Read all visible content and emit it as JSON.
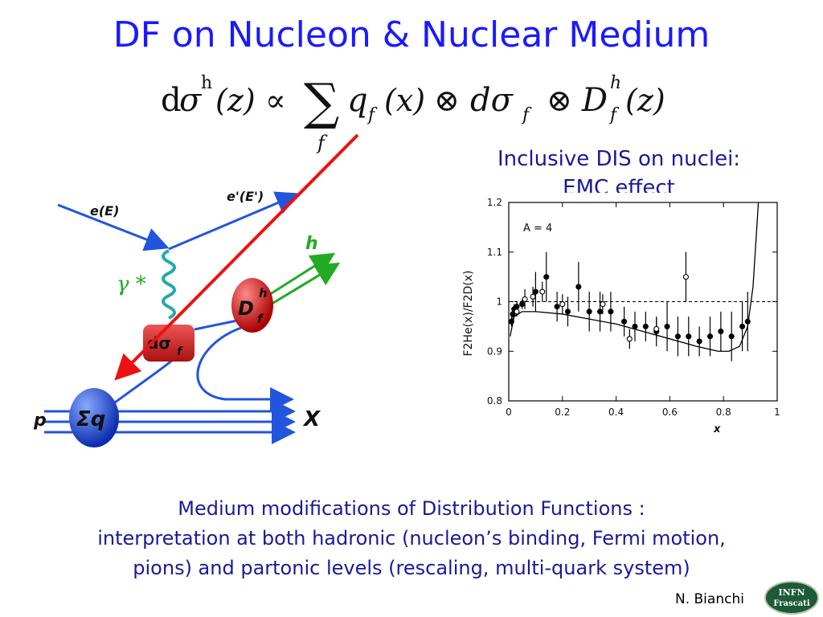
{
  "title": "DF on Nucleon & Nuclear Medium",
  "formula": {
    "d": "d",
    "sigma": "σ",
    "h_sup": "h",
    "z_arg": "(z)",
    "propto": "∝",
    "sum": "∑",
    "sum_sub": "f",
    "q": "q",
    "q_sub": "f",
    "x_arg": "(x)",
    "otimes1": "⊗",
    "dsigma": "dσ",
    "dsigma_sub": "f",
    "otimes2": "⊗",
    "D": "D",
    "D_sup": "h",
    "D_sub": "f",
    "z_arg2": "(z)"
  },
  "diagram": {
    "e_in": "e(E)",
    "e_out": "e'(E')",
    "gamma": "γ *",
    "h": "h",
    "D": "D",
    "D_sup": "h",
    "D_sub": "f",
    "dsigma": "dσ",
    "dsigma_sub": "f",
    "p": "p",
    "sigma_q": "Σq",
    "X": "X",
    "colors": {
      "blue_line": "#2255dd",
      "red_arrow": "#ee1111",
      "green": "#22aa22",
      "gamma_wave": "#22aaaa",
      "red_blob": "#cc1111",
      "blue_blob": "#1144dd"
    }
  },
  "dis_caption": {
    "line1": "Inclusive DIS on nuclei:",
    "line2": "EMC effect"
  },
  "chart_data": {
    "type": "scatter",
    "title": "",
    "annotation": "A = 4",
    "xlabel": "x",
    "ylabel": "F2He(x)/F2D(x)",
    "xlim": [
      0,
      1
    ],
    "ylim": [
      0.8,
      1.2
    ],
    "xticks": [
      "0",
      "0.2",
      "0.4",
      "0.6",
      "0.8",
      "1"
    ],
    "yticks": [
      "0.8",
      "0.9",
      "1",
      "1.1",
      "1.2"
    ],
    "reference_line": 1.0,
    "series": [
      {
        "marker": "filled",
        "points": [
          {
            "x": 0.01,
            "y": 0.96,
            "err": 0.01
          },
          {
            "x": 0.015,
            "y": 0.975,
            "err": 0.01
          },
          {
            "x": 0.02,
            "y": 0.985,
            "err": 0.01
          },
          {
            "x": 0.03,
            "y": 0.99,
            "err": 0.01
          },
          {
            "x": 0.05,
            "y": 0.995,
            "err": 0.01
          },
          {
            "x": 0.1,
            "y": 1.02,
            "err": 0.04
          },
          {
            "x": 0.14,
            "y": 1.05,
            "err": 0.05
          },
          {
            "x": 0.18,
            "y": 0.99,
            "err": 0.03
          },
          {
            "x": 0.22,
            "y": 0.98,
            "err": 0.03
          },
          {
            "x": 0.26,
            "y": 1.03,
            "err": 0.05
          },
          {
            "x": 0.3,
            "y": 0.98,
            "err": 0.04
          },
          {
            "x": 0.34,
            "y": 0.98,
            "err": 0.04
          },
          {
            "x": 0.38,
            "y": 0.98,
            "err": 0.04
          },
          {
            "x": 0.43,
            "y": 0.96,
            "err": 0.03
          },
          {
            "x": 0.47,
            "y": 0.95,
            "err": 0.03
          },
          {
            "x": 0.51,
            "y": 0.95,
            "err": 0.03
          },
          {
            "x": 0.55,
            "y": 0.94,
            "err": 0.03
          },
          {
            "x": 0.59,
            "y": 0.95,
            "err": 0.05
          },
          {
            "x": 0.63,
            "y": 0.93,
            "err": 0.04
          },
          {
            "x": 0.67,
            "y": 0.93,
            "err": 0.04
          },
          {
            "x": 0.71,
            "y": 0.92,
            "err": 0.03
          },
          {
            "x": 0.75,
            "y": 0.93,
            "err": 0.04
          },
          {
            "x": 0.79,
            "y": 0.94,
            "err": 0.04
          },
          {
            "x": 0.83,
            "y": 0.93,
            "err": 0.05
          },
          {
            "x": 0.87,
            "y": 0.95,
            "err": 0.05
          },
          {
            "x": 0.89,
            "y": 0.96,
            "err": 0.06
          }
        ]
      },
      {
        "marker": "open",
        "points": [
          {
            "x": 0.03,
            "y": 0.98,
            "err": 0.01
          },
          {
            "x": 0.06,
            "y": 1.005,
            "err": 0.02
          },
          {
            "x": 0.09,
            "y": 1.01,
            "err": 0.02
          },
          {
            "x": 0.125,
            "y": 1.02,
            "err": 0.02
          },
          {
            "x": 0.2,
            "y": 0.995,
            "err": 0.02
          },
          {
            "x": 0.35,
            "y": 0.995,
            "err": 0.02
          },
          {
            "x": 0.45,
            "y": 0.925,
            "err": 0.02
          },
          {
            "x": 0.55,
            "y": 0.945,
            "err": 0.02
          },
          {
            "x": 0.66,
            "y": 1.05,
            "err": 0.05
          }
        ]
      }
    ],
    "fit_curve": [
      [
        0.005,
        0.93
      ],
      [
        0.02,
        0.97
      ],
      [
        0.05,
        0.98
      ],
      [
        0.1,
        0.98
      ],
      [
        0.2,
        0.975
      ],
      [
        0.3,
        0.965
      ],
      [
        0.4,
        0.955
      ],
      [
        0.5,
        0.94
      ],
      [
        0.6,
        0.925
      ],
      [
        0.7,
        0.91
      ],
      [
        0.78,
        0.9
      ],
      [
        0.82,
        0.9
      ],
      [
        0.86,
        0.91
      ],
      [
        0.89,
        0.95
      ],
      [
        0.91,
        1.03
      ],
      [
        0.93,
        1.2
      ]
    ]
  },
  "bottom_text": {
    "line1": "Medium modifications of Distribution Functions :",
    "line2": "interpretation at both hadronic (nucleon’s binding, Fermi motion,",
    "line3": "pions) and partonic levels (rescaling, multi-quark system)"
  },
  "author": "N. Bianchi",
  "logo": {
    "line1": "INFN",
    "line2": "Frascati"
  }
}
